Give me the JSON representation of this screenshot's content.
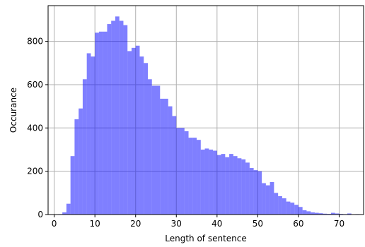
{
  "chart_data": {
    "type": "bar",
    "subtype": "histogram",
    "xlabel": "Length of sentence",
    "ylabel": "Occurance",
    "xlim": [
      -1.5,
      76
    ],
    "ylim": [
      0,
      965
    ],
    "x_ticks": [
      0,
      10,
      20,
      30,
      40,
      50,
      60,
      70
    ],
    "y_ticks": [
      0,
      200,
      400,
      600,
      800
    ],
    "grid": true,
    "color": "#0000ff",
    "alpha": 0.5,
    "bin_width": 1,
    "bin_starts": [
      1,
      2,
      3,
      4,
      5,
      6,
      7,
      8,
      9,
      10,
      11,
      12,
      13,
      14,
      15,
      16,
      17,
      18,
      19,
      20,
      21,
      22,
      23,
      24,
      25,
      26,
      27,
      28,
      29,
      30,
      31,
      32,
      33,
      34,
      35,
      36,
      37,
      38,
      39,
      40,
      41,
      42,
      43,
      44,
      45,
      46,
      47,
      48,
      49,
      50,
      51,
      52,
      53,
      54,
      55,
      56,
      57,
      58,
      59,
      60,
      61,
      62,
      63,
      64,
      65,
      66,
      67,
      68,
      69,
      70,
      71,
      72,
      73,
      74
    ],
    "values": [
      2,
      10,
      50,
      270,
      440,
      490,
      625,
      745,
      730,
      840,
      845,
      845,
      880,
      895,
      915,
      895,
      875,
      755,
      770,
      780,
      730,
      700,
      625,
      595,
      595,
      535,
      535,
      500,
      455,
      400,
      400,
      385,
      355,
      355,
      345,
      300,
      305,
      300,
      295,
      275,
      280,
      265,
      280,
      270,
      260,
      255,
      240,
      215,
      205,
      200,
      145,
      135,
      150,
      100,
      85,
      75,
      60,
      55,
      45,
      35,
      20,
      15,
      10,
      8,
      6,
      4,
      3,
      8,
      5,
      3,
      2,
      5,
      1,
      2
    ]
  }
}
